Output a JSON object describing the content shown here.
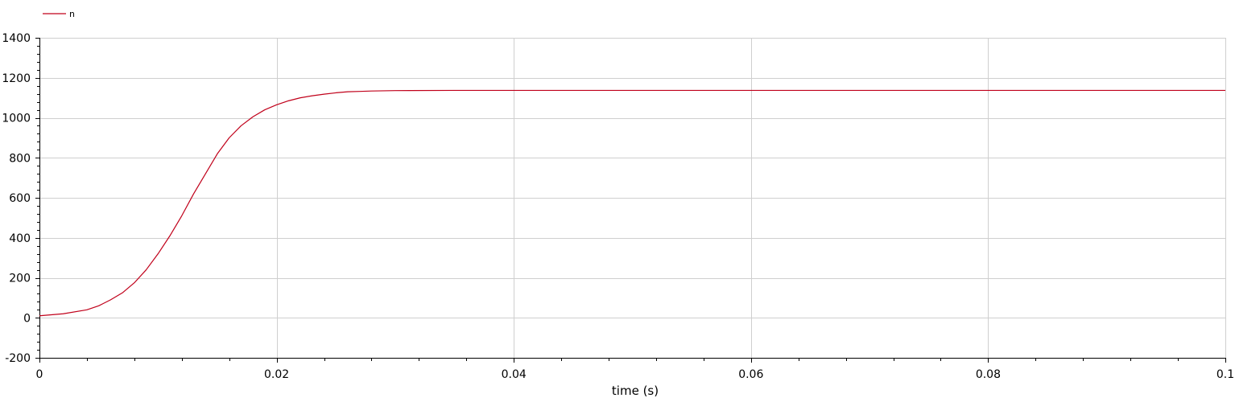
{
  "chart_data": {
    "type": "line",
    "title": "",
    "xlabel": "time (s)",
    "ylabel": "",
    "xlim": [
      0,
      0.1
    ],
    "ylim": [
      -200,
      1400
    ],
    "x_ticks": [
      0,
      0.02,
      0.04,
      0.06,
      0.08,
      0.1
    ],
    "x_tick_labels": [
      "0",
      "0.02",
      "0.04",
      "0.06",
      "0.08",
      "0.1"
    ],
    "y_ticks": [
      -200,
      0,
      200,
      400,
      600,
      800,
      1000,
      1200,
      1400
    ],
    "y_tick_labels": [
      "-200",
      "0",
      "200",
      "400",
      "600",
      "800",
      "1000",
      "1200",
      "1400"
    ],
    "grid": true,
    "legend": "top-left",
    "series": [
      {
        "name": "n",
        "color": "#c0001a",
        "x": [
          0,
          0.002,
          0.004,
          0.005,
          0.006,
          0.007,
          0.008,
          0.009,
          0.01,
          0.011,
          0.012,
          0.013,
          0.014,
          0.015,
          0.016,
          0.017,
          0.018,
          0.019,
          0.02,
          0.021,
          0.022,
          0.023,
          0.024,
          0.025,
          0.026,
          0.027,
          0.028,
          0.03,
          0.035,
          0.04,
          0.05,
          0.06,
          0.07,
          0.08,
          0.09,
          0.1
        ],
        "y": [
          10,
          20,
          40,
          60,
          90,
          125,
          175,
          240,
          320,
          410,
          510,
          620,
          720,
          820,
          900,
          960,
          1005,
          1040,
          1065,
          1085,
          1100,
          1110,
          1118,
          1125,
          1130,
          1132,
          1134,
          1136,
          1137,
          1137,
          1137,
          1137,
          1137,
          1137,
          1137,
          1137
        ]
      }
    ]
  }
}
